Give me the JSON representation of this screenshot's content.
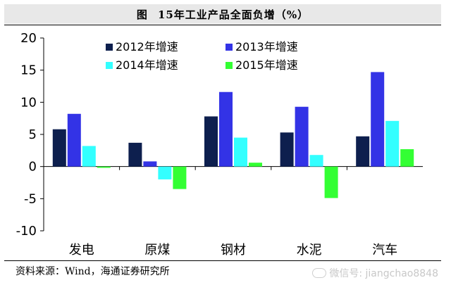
{
  "header": {
    "prefix": "图",
    "title": "15年工业产品全面负增（%）"
  },
  "footer": {
    "source": "资料来源：Wind，海通证券研究所",
    "watermark": "微信号: jiangchao8848",
    "watermark_icon": "wechat-icon"
  },
  "chart_data": {
    "type": "bar",
    "categories": [
      "发电",
      "原煤",
      "钢材",
      "水泥",
      "汽车"
    ],
    "series": [
      {
        "name": "2012年增速",
        "color": "#0d1f4e",
        "values": [
          5.8,
          3.7,
          7.8,
          5.3,
          4.7
        ]
      },
      {
        "name": "2013年增速",
        "color": "#3333e6",
        "values": [
          8.2,
          0.8,
          11.6,
          9.3,
          14.7
        ]
      },
      {
        "name": "2014年增速",
        "color": "#33ffff",
        "values": [
          3.2,
          -2.0,
          4.5,
          1.8,
          7.1
        ]
      },
      {
        "name": "2015年增速",
        "color": "#33ff33",
        "values": [
          -0.2,
          -3.5,
          0.6,
          -4.9,
          2.7
        ]
      }
    ],
    "yticks": [
      20,
      15,
      10,
      5,
      0,
      -5,
      -10
    ],
    "ylim": [
      -10,
      20
    ],
    "legend_position": "top-center",
    "grid": false
  }
}
